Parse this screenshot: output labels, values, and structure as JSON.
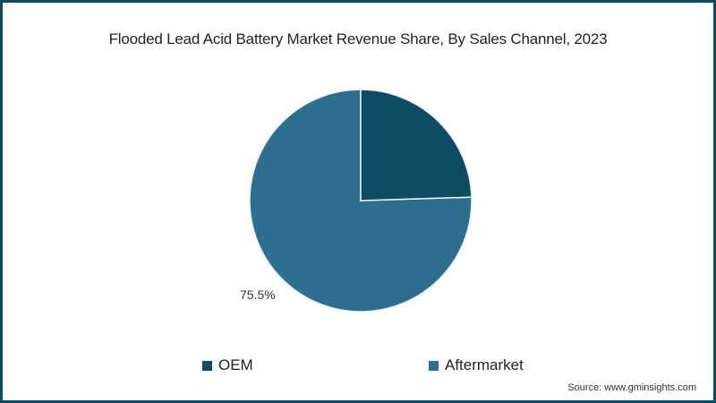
{
  "chart_data": {
    "type": "pie",
    "title": "Flooded Lead Acid Battery Market Revenue Share, By Sales Channel, 2023",
    "categories": [
      "OEM",
      "Aftermarket"
    ],
    "values": [
      24.5,
      75.5
    ],
    "colors": [
      "#0d4d63",
      "#2e6e8e"
    ],
    "data_labels": [
      "",
      "75.5%"
    ],
    "legend_position": "bottom",
    "start_angle": "12 o'clock, clockwise",
    "source": "Source: www.gminsights.com"
  },
  "title": "Flooded Lead Acid Battery Market Revenue Share, By Sales Channel, 2023",
  "slice_label": "75.5%",
  "legend": [
    {
      "label": "OEM",
      "color": "#0d4d63"
    },
    {
      "label": "Aftermarket",
      "color": "#2e6e8e"
    }
  ],
  "source": "Source: www.gminsights.com",
  "border_color": "#0e4a5f"
}
